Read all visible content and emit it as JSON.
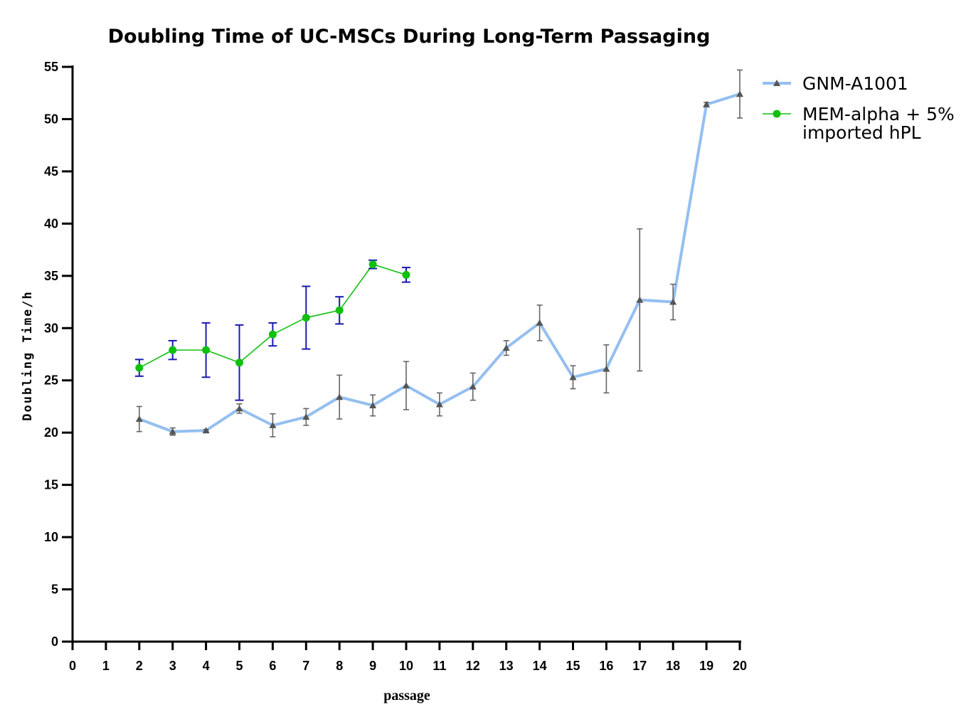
{
  "chart_data": {
    "type": "line",
    "title": "Doubling Time of UC-MSCs During Long-Term Passaging",
    "xlabel": "passage",
    "ylabel": "Doubling Time/h",
    "xlim": [
      0,
      20
    ],
    "ylim": [
      0,
      55
    ],
    "x_ticks": [
      0,
      1,
      2,
      3,
      4,
      5,
      6,
      7,
      8,
      9,
      10,
      11,
      12,
      13,
      14,
      15,
      16,
      17,
      18,
      19,
      20
    ],
    "y_ticks": [
      0,
      5,
      10,
      15,
      20,
      25,
      30,
      35,
      40,
      45,
      50,
      55
    ],
    "grid": false,
    "legend_position": "top-right",
    "series": [
      {
        "name": "GNM-A1001",
        "color": "#94bff0",
        "marker": "triangle",
        "marker_color": "#555555",
        "error_color": "#666666",
        "x": [
          2,
          3,
          4,
          5,
          6,
          7,
          8,
          9,
          10,
          11,
          12,
          13,
          14,
          15,
          16,
          17,
          18,
          19,
          20
        ],
        "y": [
          21.3,
          20.1,
          20.2,
          22.3,
          20.7,
          21.5,
          23.4,
          22.6,
          24.5,
          22.7,
          24.4,
          28.1,
          30.5,
          25.3,
          26.1,
          32.7,
          32.5,
          51.4,
          52.4
        ],
        "err": [
          1.2,
          0.35,
          0.1,
          0.45,
          1.1,
          0.8,
          2.1,
          1.0,
          2.3,
          1.1,
          1.3,
          0.7,
          1.7,
          1.1,
          2.3,
          6.8,
          1.7,
          0.2,
          2.3
        ]
      },
      {
        "name": "MEM-alpha + 5% imported hPL",
        "name_lines": [
          "MEM-alpha + 5%",
          "imported hPL"
        ],
        "color": "#10c010",
        "marker": "circle",
        "marker_color": "#10c010",
        "error_color": "#1a1ab0",
        "x": [
          2,
          3,
          4,
          5,
          6,
          7,
          8,
          9,
          10
        ],
        "y": [
          26.2,
          27.9,
          27.9,
          26.7,
          29.4,
          31.0,
          31.7,
          36.1,
          35.1
        ],
        "err": [
          0.8,
          0.9,
          2.6,
          3.6,
          1.1,
          3.0,
          1.3,
          0.4,
          0.7
        ]
      }
    ]
  }
}
